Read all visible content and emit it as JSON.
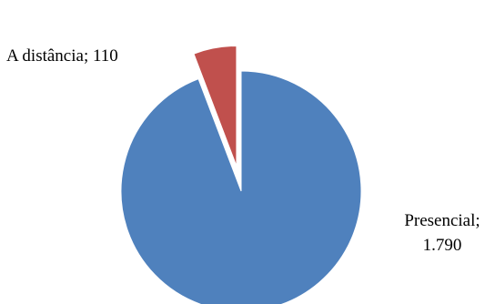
{
  "chart_data": {
    "type": "pie",
    "slices": [
      {
        "label": "Presencial",
        "value": 1790,
        "display_value": "1.790",
        "color": "#4F81BD",
        "exploded": false
      },
      {
        "label": "A distância",
        "value": 110,
        "display_value": "110",
        "color": "#C0504D",
        "exploded": true
      }
    ],
    "labels": {
      "a_distancia": "A distância; 110",
      "presencial_line1": "Presencial;",
      "presencial_line2": "1.790"
    },
    "start_angle_deg": 0,
    "direction": "clockwise-from-top"
  }
}
